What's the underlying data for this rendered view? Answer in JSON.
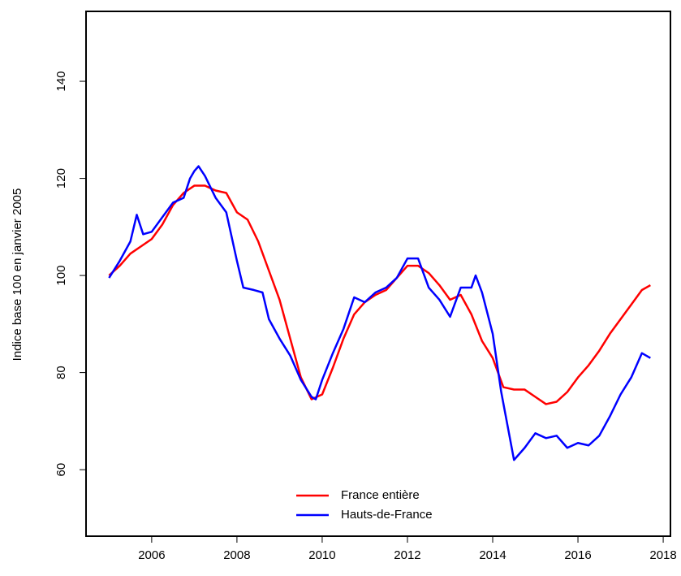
{
  "chart_data": {
    "type": "line",
    "y_label": "Indice base 100 en janvier 2005",
    "xlim": [
      2004.46,
      2018.17
    ],
    "ylim": [
      46.3,
      154.4
    ],
    "xticks": [
      2006,
      2008,
      2010,
      2012,
      2014,
      2016,
      2018
    ],
    "yticks": [
      60,
      80,
      100,
      120,
      140
    ],
    "legend": "bottom",
    "series": [
      {
        "name": "France entière",
        "color": "#ff0000",
        "x": [
          2005.0,
          2005.25,
          2005.5,
          2005.75,
          2006.0,
          2006.25,
          2006.5,
          2006.75,
          2007.0,
          2007.25,
          2007.5,
          2007.75,
          2008.0,
          2008.25,
          2008.5,
          2008.75,
          2009.0,
          2009.25,
          2009.5,
          2009.75,
          2010.0,
          2010.25,
          2010.5,
          2010.75,
          2011.0,
          2011.25,
          2011.5,
          2011.75,
          2012.0,
          2012.25,
          2012.5,
          2012.75,
          2013.0,
          2013.25,
          2013.5,
          2013.75,
          2014.0,
          2014.25,
          2014.5,
          2014.75,
          2015.0,
          2015.25,
          2015.5,
          2015.75,
          2016.0,
          2016.25,
          2016.5,
          2016.75,
          2017.0,
          2017.25,
          2017.5,
          2017.7
        ],
        "values": [
          100,
          102,
          104.5,
          106,
          107.5,
          110.5,
          114.5,
          117,
          118.5,
          118.5,
          117.5,
          117,
          113,
          111.5,
          107,
          101,
          95,
          87,
          79,
          74.5,
          75.5,
          81,
          87,
          92,
          94.5,
          96,
          97,
          99.5,
          102,
          102,
          100.5,
          98,
          95,
          96,
          92,
          86.5,
          83,
          77,
          76.5,
          76.5,
          75,
          73.5,
          74,
          76,
          79,
          81.5,
          84.5,
          88,
          91,
          94,
          97,
          98
        ]
      },
      {
        "name": "Hauts-de-France",
        "color": "#0000ff",
        "x": [
          2005.0,
          2005.25,
          2005.5,
          2005.65,
          2005.8,
          2006.0,
          2006.25,
          2006.5,
          2006.75,
          2006.9,
          2007.0,
          2007.1,
          2007.25,
          2007.5,
          2007.75,
          2008.0,
          2008.15,
          2008.4,
          2008.6,
          2008.75,
          2009.0,
          2009.25,
          2009.5,
          2009.75,
          2009.85,
          2010.0,
          2010.25,
          2010.5,
          2010.75,
          2011.0,
          2011.25,
          2011.5,
          2011.75,
          2012.0,
          2012.25,
          2012.5,
          2012.75,
          2013.0,
          2013.25,
          2013.5,
          2013.6,
          2013.75,
          2014.0,
          2014.2,
          2014.5,
          2014.75,
          2015.0,
          2015.25,
          2015.5,
          2015.75,
          2016.0,
          2016.25,
          2016.5,
          2016.75,
          2017.0,
          2017.25,
          2017.5,
          2017.7
        ],
        "values": [
          99.5,
          103,
          107,
          112.5,
          108.5,
          109,
          112,
          115,
          116,
          120,
          121.5,
          122.5,
          120.5,
          116,
          113,
          103,
          97.5,
          97,
          96.5,
          91,
          87,
          83.5,
          78.5,
          75,
          74.5,
          78.5,
          84,
          89,
          95.5,
          94.5,
          96.5,
          97.5,
          99.5,
          103.5,
          103.5,
          97.5,
          95,
          91.5,
          97.5,
          97.5,
          100,
          96.5,
          88,
          76,
          62,
          64.5,
          67.5,
          66.5,
          67,
          64.5,
          65.5,
          65,
          67,
          71,
          75.5,
          79,
          84,
          83
        ]
      }
    ]
  }
}
